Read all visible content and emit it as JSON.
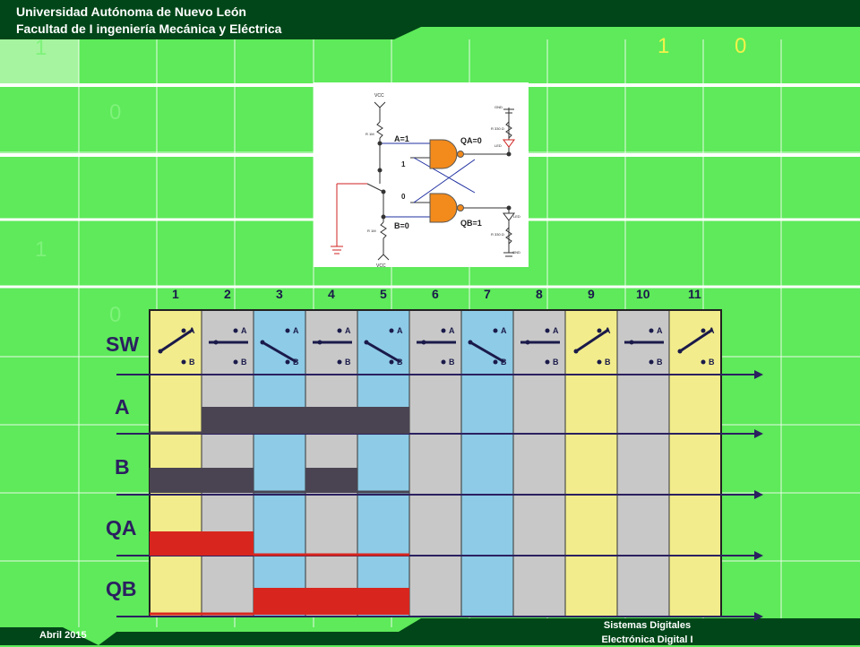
{
  "header": {
    "line1": "Universidad Autónoma de Nuevo León",
    "line2": "Facultad de I ingeniería Mecánica y Eléctrica"
  },
  "footer": {
    "date": "Abril 2015",
    "course1": "Sistemas Digitales",
    "course2": "Electrónica Digital I"
  },
  "background_numbers": [
    "1",
    "0",
    "1",
    "0",
    "1",
    "0"
  ],
  "circuit": {
    "vcc_top": "VCC",
    "vcc_bottom": "VCC",
    "a_label": "A=1",
    "b_label": "B=0",
    "qa_label": "QA=0",
    "qb_label": "QB=1",
    "cross_top": "1",
    "cross_bottom": "0",
    "res_a": "R 1M",
    "res_b": "R 1M",
    "res_top": "R 330 Ω",
    "res_bottom": "R 330 Ω",
    "gnd_top": "GND",
    "gnd_bottom": "GND",
    "led_top": "LED",
    "led_bottom": "LED"
  },
  "timing": {
    "columns": [
      "1",
      "2",
      "3",
      "4",
      "5",
      "6",
      "7",
      "8",
      "9",
      "10",
      "11"
    ],
    "column_colors": [
      "#f2ec8c",
      "#c8c8c8",
      "#8ecbe6",
      "#c8c8c8",
      "#8ecbe6",
      "#c8c8c8",
      "#8ecbe6",
      "#c8c8c8",
      "#f2ec8c",
      "#c8c8c8",
      "#f2ec8c"
    ],
    "switch_positions": [
      "A",
      "mid",
      "B",
      "mid",
      "B",
      "mid",
      "B",
      "mid",
      "A",
      "mid",
      "A"
    ],
    "row_labels": [
      "SW",
      "A",
      "B",
      "QA",
      "QB"
    ],
    "switch_a": "A",
    "switch_b": "B",
    "signals": {
      "A": [
        0,
        1,
        1,
        1,
        1,
        0,
        0,
        0,
        0,
        0,
        0
      ],
      "B": [
        1,
        1,
        0,
        1,
        0,
        0,
        0,
        0,
        0,
        0,
        0
      ],
      "QA": [
        1,
        1,
        0,
        0,
        0,
        0,
        0,
        0,
        0,
        0,
        0
      ],
      "QB": [
        0,
        0,
        1,
        1,
        1,
        0,
        0,
        0,
        0,
        0,
        0
      ]
    },
    "colors": {
      "A": "#4a4452",
      "B": "#4a4452",
      "QA": "#d8261e",
      "QB": "#d8261e"
    }
  },
  "colors": {
    "header_bg": "#004618",
    "page_bg": "#5eea5a",
    "grid_line": "#ffffff"
  }
}
